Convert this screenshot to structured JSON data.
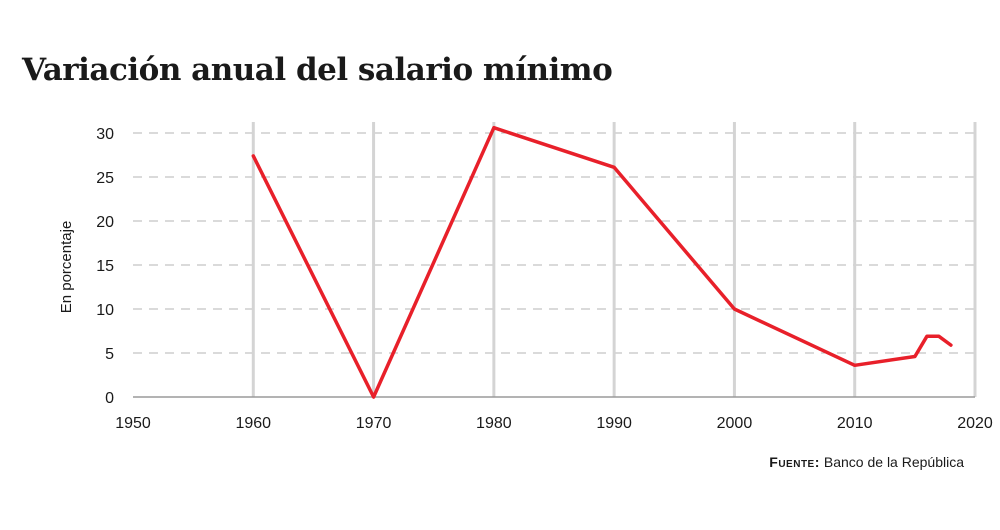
{
  "chart_data": {
    "type": "line",
    "title": "Variación anual del salario mínimo",
    "ylabel": "En porcentaje",
    "xlabel": "",
    "xlim": [
      1950,
      2020
    ],
    "ylim": [
      0,
      30
    ],
    "x_ticks": [
      1950,
      1960,
      1970,
      1980,
      1990,
      2000,
      2010,
      2020
    ],
    "y_ticks": [
      0,
      5,
      10,
      15,
      20,
      25,
      30
    ],
    "grid": {
      "vertical": "solid",
      "horizontal": "dashed"
    },
    "line_color": "#e8202a",
    "series": [
      {
        "x": [
          1960,
          1970,
          1980,
          1990,
          2000,
          2010,
          2015,
          2016,
          2017,
          2018
        ],
        "values": [
          27.4,
          0,
          30.6,
          26.1,
          10,
          3.6,
          4.6,
          6.9,
          6.9,
          5.9
        ]
      }
    ],
    "source_label": "Fuente:",
    "source_text": "Banco de la República"
  }
}
